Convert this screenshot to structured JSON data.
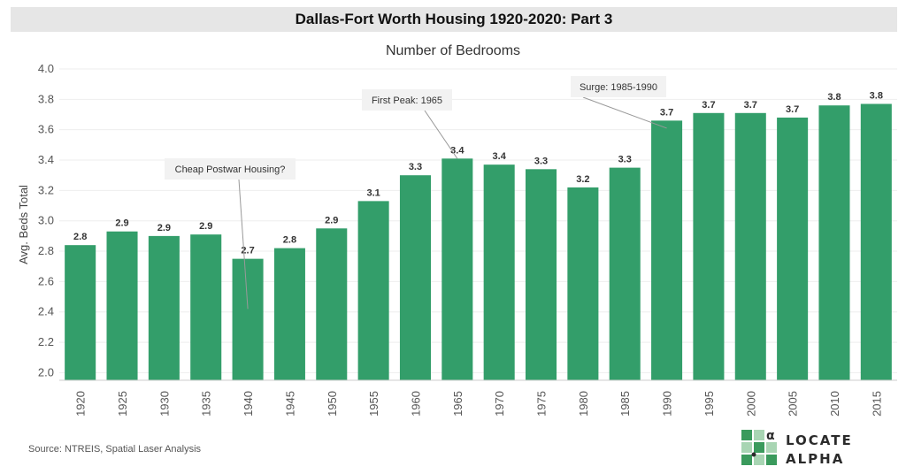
{
  "header": {
    "title": "Dallas-Fort Worth Housing 1920-2020: Part 3"
  },
  "source": "Source: NTREIS, Spatial Laser Analysis",
  "logo": {
    "line1": "LOCATE",
    "line2": "ALPHA",
    "glyph": "α"
  },
  "colors": {
    "bar": "#339e6a",
    "grid": "#eeeeee",
    "title_bg": "#e6e6e6",
    "logo_green": "#3a9a5c"
  },
  "chart_data": {
    "type": "bar",
    "title": "Number of Bedrooms",
    "xlabel": "",
    "ylabel": "Avg. Beds Total",
    "ylim": [
      1.95,
      4.0
    ],
    "yticks": [
      "2.0",
      "2.2",
      "2.4",
      "2.6",
      "2.8",
      "3.0",
      "3.2",
      "3.4",
      "3.6",
      "3.8",
      "4.0"
    ],
    "grid": true,
    "categories": [
      "1920",
      "1925",
      "1930",
      "1935",
      "1940",
      "1945",
      "1950",
      "1955",
      "1960",
      "1965",
      "1970",
      "1975",
      "1980",
      "1985",
      "1990",
      "1995",
      "2000",
      "2005",
      "2010",
      "2015"
    ],
    "values": [
      2.84,
      2.93,
      2.9,
      2.91,
      2.75,
      2.82,
      2.95,
      3.13,
      3.3,
      3.41,
      3.37,
      3.34,
      3.22,
      3.35,
      3.66,
      3.71,
      3.71,
      3.68,
      3.76,
      3.77
    ],
    "labels": [
      "2.8",
      "2.9",
      "2.9",
      "2.9",
      "2.7",
      "2.8",
      "2.9",
      "3.1",
      "3.3",
      "3.4",
      "3.4",
      "3.3",
      "3.2",
      "3.3",
      "3.7",
      "3.7",
      "3.7",
      "3.7",
      "3.8",
      "3.8"
    ],
    "annotations": [
      {
        "text": "Cheap Postwar Housing?",
        "category": "1940",
        "value": 2.42
      },
      {
        "text": "First Peak: 1965",
        "category": "1965",
        "value": 3.41
      },
      {
        "text": "Surge: 1985-1990",
        "category": "1990",
        "value": 3.61
      }
    ]
  }
}
